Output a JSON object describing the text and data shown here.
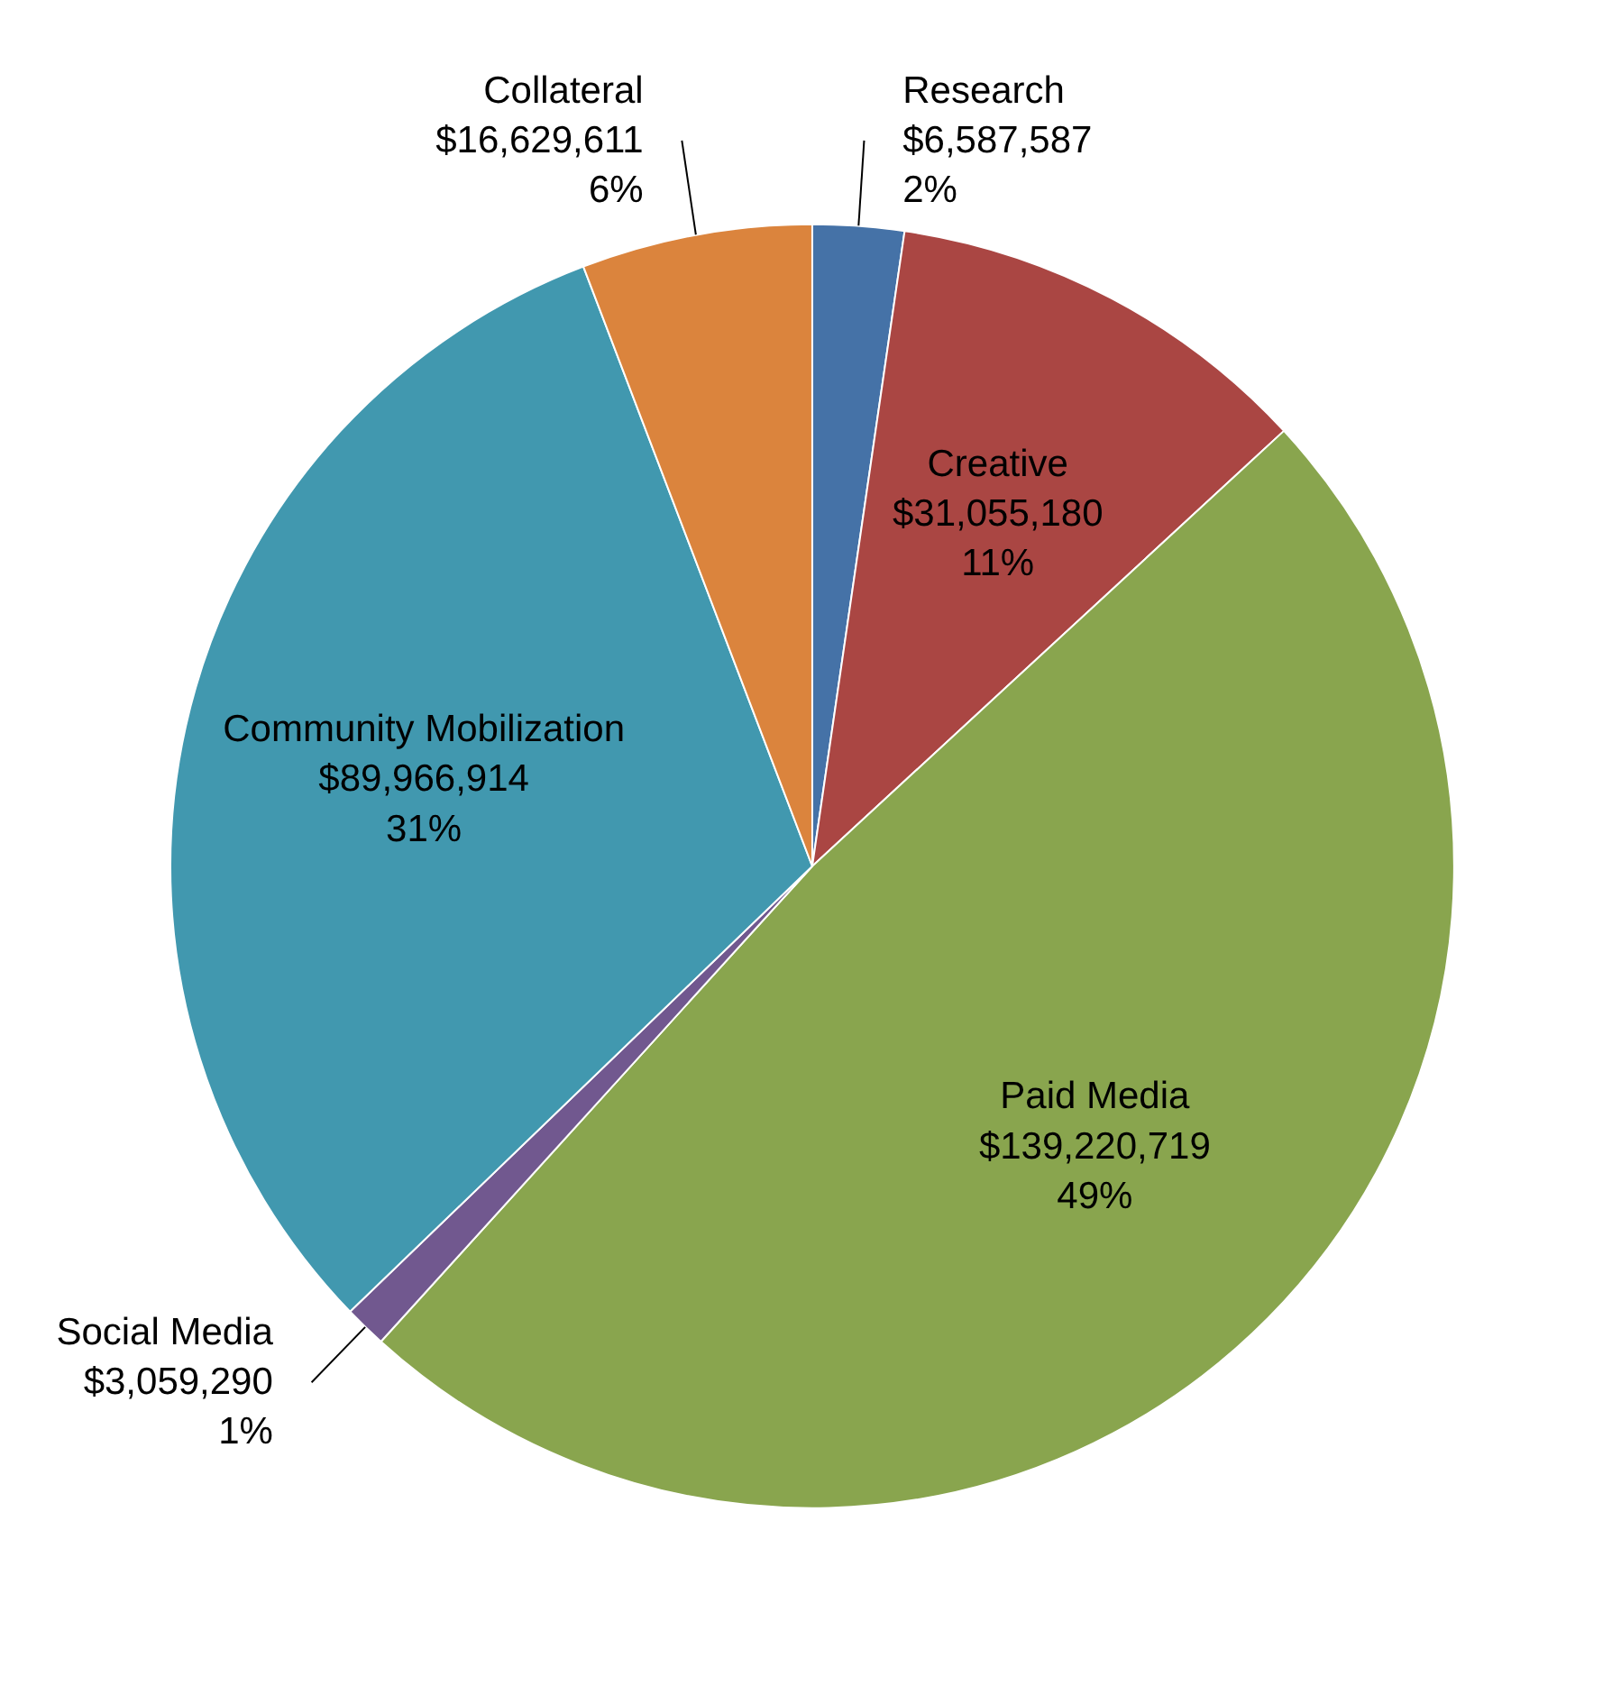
{
  "chart_data": {
    "type": "pie",
    "categories": [
      "Research",
      "Creative",
      "Paid Media",
      "Social Media",
      "Community Mobilization",
      "Collateral"
    ],
    "values": [
      6587587,
      31055180,
      139220719,
      3059290,
      89966914,
      16629611
    ],
    "colors": [
      "#4572a7",
      "#aa4643",
      "#89a54e",
      "#71588f",
      "#4198af",
      "#db843d"
    ],
    "value_labels": [
      "$6,587,587\n2%",
      "$31,055,180\n11%",
      "$139,220,719\n49%",
      "$3,059,290\n1%",
      "$89,966,914\n31%",
      "$16,629,611\n6%"
    ]
  }
}
